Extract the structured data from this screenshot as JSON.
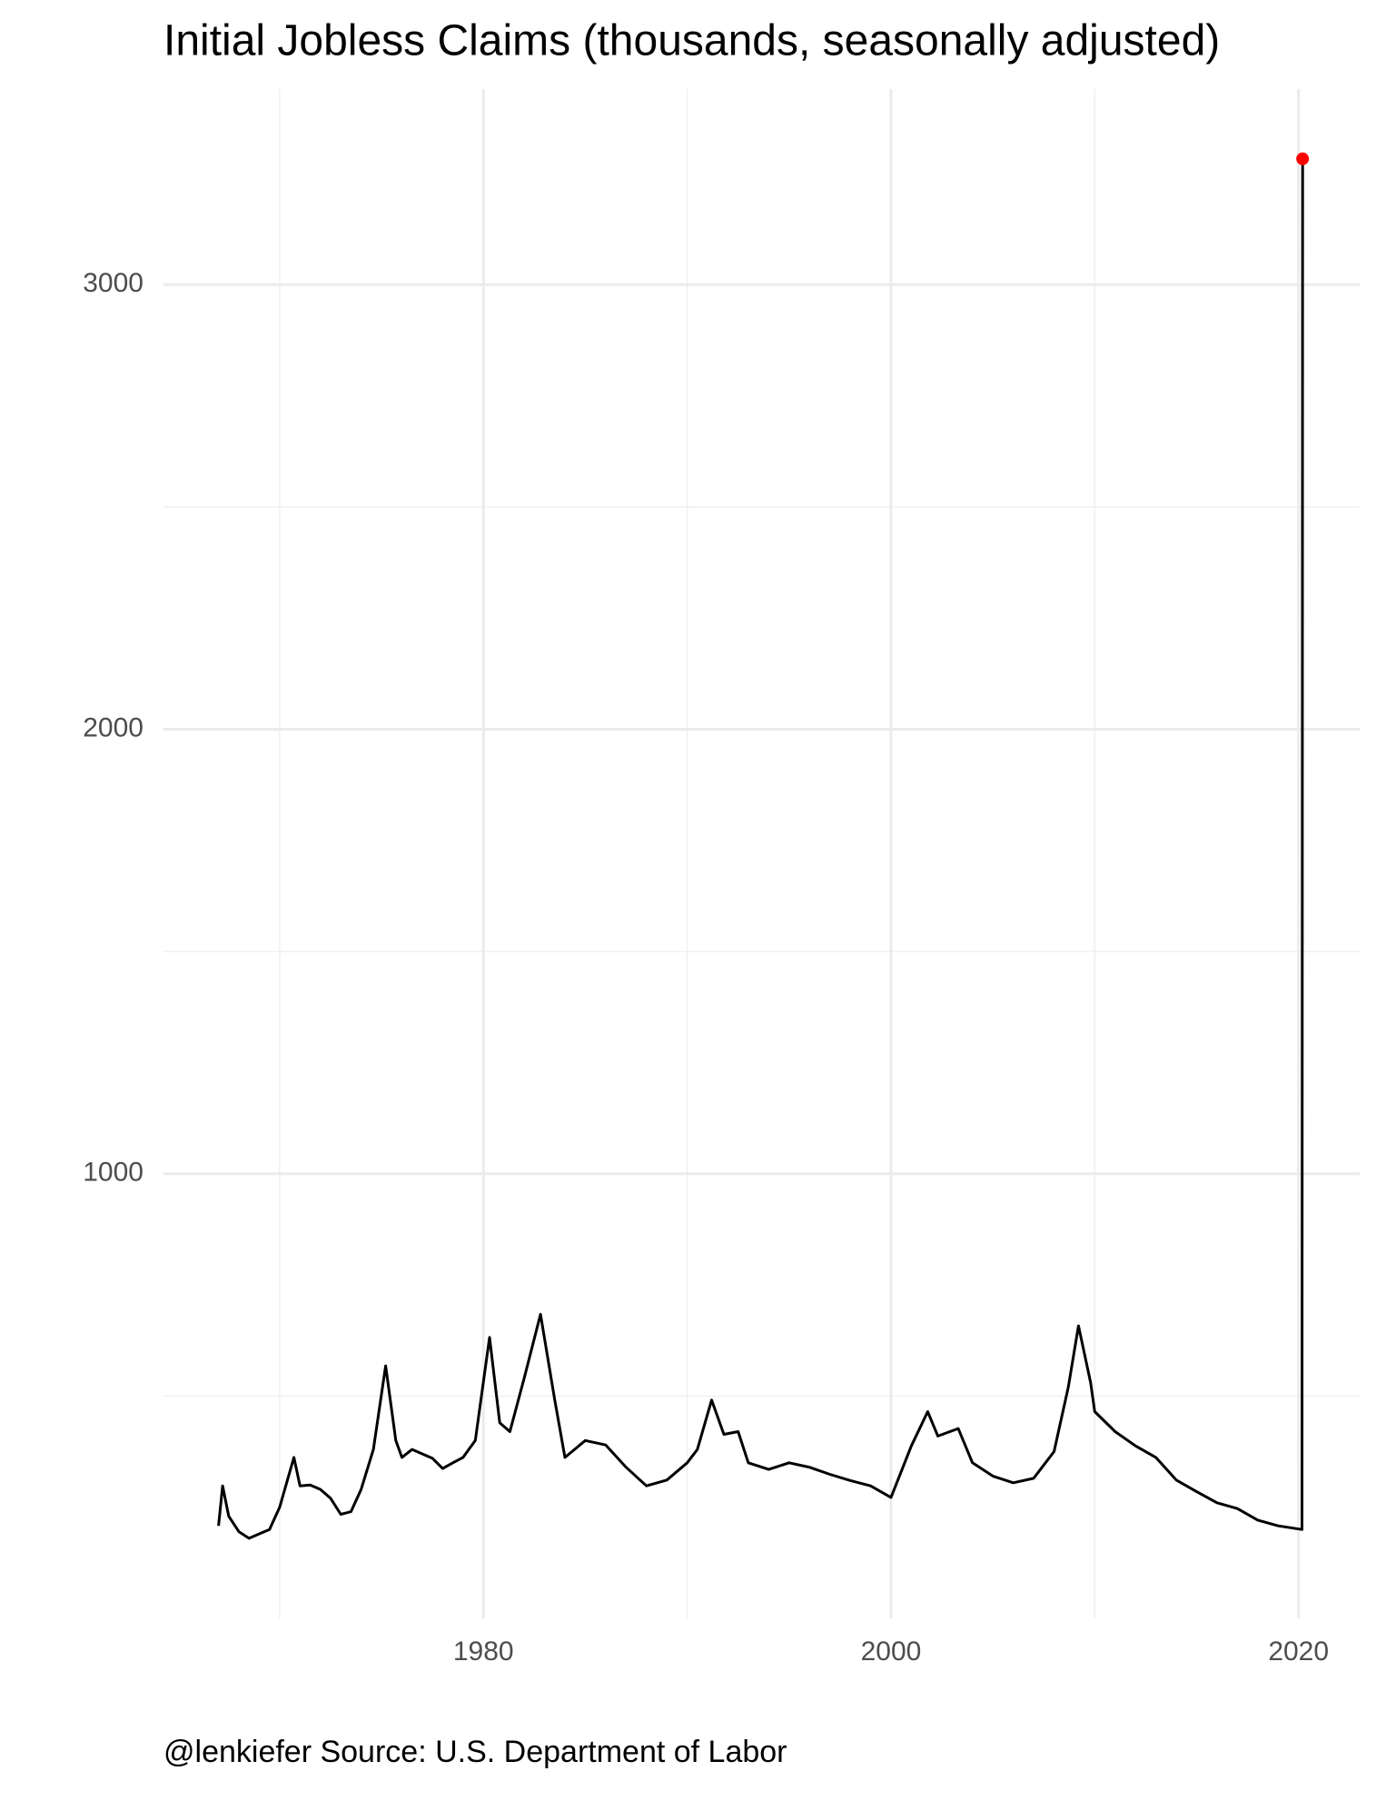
{
  "chart_data": {
    "type": "line",
    "title": "Initial Jobless Claims (thousands, seasonally adjusted)",
    "caption": "@lenkiefer Source: U.S. Department of Labor",
    "x": [
      1967.0,
      1967.2,
      1967.5,
      1968.0,
      1968.5,
      1969.0,
      1969.5,
      1970.0,
      1970.7,
      1971.0,
      1971.5,
      1972.0,
      1972.5,
      1973.0,
      1973.5,
      1974.0,
      1974.6,
      1975.2,
      1975.7,
      1976.0,
      1976.5,
      1977.0,
      1977.5,
      1978.0,
      1978.5,
      1979.0,
      1979.6,
      1980.3,
      1980.8,
      1981.3,
      1982.0,
      1982.8,
      1983.5,
      1984.0,
      1985.0,
      1986.0,
      1987.0,
      1988.0,
      1989.0,
      1990.0,
      1990.5,
      1991.2,
      1991.8,
      1992.5,
      1993.0,
      1994.0,
      1995.0,
      1996.0,
      1997.0,
      1998.0,
      1999.0,
      2000.0,
      2001.0,
      2001.8,
      2002.3,
      2003.3,
      2004.0,
      2005.0,
      2006.0,
      2007.0,
      2008.0,
      2008.7,
      2009.2,
      2009.8,
      2010.0,
      2011.0,
      2012.0,
      2013.0,
      2014.0,
      2015.0,
      2016.0,
      2017.0,
      2018.0,
      2019.0,
      2020.17,
      2020.2
    ],
    "series": [
      {
        "color": "#000000",
        "values": [
          208,
          298,
          230,
          195,
          180,
          190,
          200,
          250,
          362,
          298,
          300,
          290,
          270,
          234,
          240,
          290,
          380,
          568,
          400,
          362,
          380,
          370,
          360,
          337,
          350,
          362,
          400,
          632,
          440,
          420,
          540,
          684,
          491,
          362,
          400,
          390,
          340,
          298,
          311,
          350,
          380,
          491,
          414,
          420,
          350,
          335,
          350,
          340,
          324,
          310,
          298,
          272,
          388,
          465,
          410,
          427,
          350,
          320,
          305,
          315,
          375,
          520,
          658,
          530,
          465,
          420,
          388,
          362,
          311,
          285,
          260,
          247,
          221,
          208,
          200,
          3283
        ]
      }
    ],
    "highlight_last": true,
    "highlight_color": "#ff0000",
    "xlim": [
      1964.3,
      2023
    ],
    "xticks": [
      1980,
      2000,
      2020
    ],
    "xminor": [
      1970,
      1990,
      2010
    ],
    "ylim": [
      0,
      3440
    ],
    "yticks": [
      1000,
      2000,
      3000
    ],
    "yminor": [
      500,
      1500,
      2500
    ],
    "grid": true
  }
}
